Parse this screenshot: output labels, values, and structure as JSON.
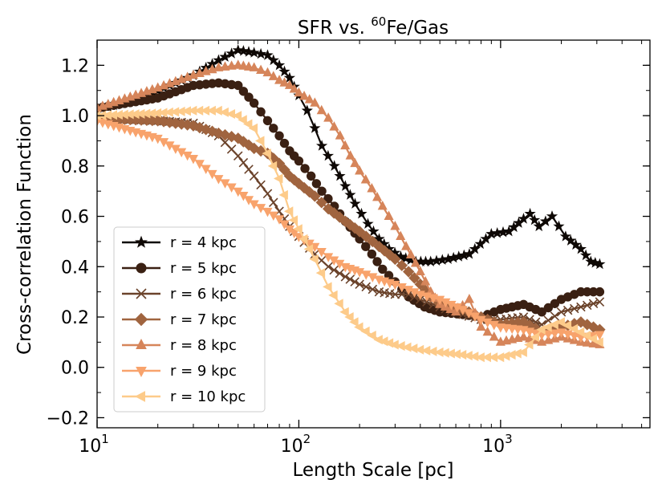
{
  "chart_data": {
    "type": "line",
    "title_main": "SFR vs. ",
    "title_sup": "60",
    "title_end": "Fe/Gas",
    "xlabel": "Length Scale [pc]",
    "ylabel": "Cross-correlation Function",
    "xscale": "log",
    "xlim": [
      10,
      5500
    ],
    "ylim": [
      -0.24,
      1.3
    ],
    "grid": false,
    "legend_position": "lower-left",
    "yticks": [
      -0.2,
      0.0,
      0.2,
      0.4,
      0.6,
      0.8,
      1.0,
      1.2
    ],
    "ytick_labels": [
      "−0.2",
      "0.0",
      "0.2",
      "0.4",
      "0.6",
      "0.8",
      "1.0",
      "1.2"
    ],
    "xticks": [
      {
        "value": 10,
        "base": "10",
        "exp": "1"
      },
      {
        "value": 100,
        "base": "10",
        "exp": "2"
      },
      {
        "value": 1000,
        "base": "10",
        "exp": "3"
      }
    ],
    "series": [
      {
        "name": "r = 4 kpc",
        "color": "#0e0805",
        "marker": "star",
        "points": [
          [
            10,
            1.02
          ],
          [
            20,
            1.1
          ],
          [
            30,
            1.16
          ],
          [
            40,
            1.22
          ],
          [
            50,
            1.26
          ],
          [
            60,
            1.25
          ],
          [
            70,
            1.24
          ],
          [
            80,
            1.2
          ],
          [
            90,
            1.15
          ],
          [
            100,
            1.08
          ],
          [
            110,
            1.02
          ],
          [
            120,
            0.95
          ],
          [
            130,
            0.88
          ],
          [
            150,
            0.8
          ],
          [
            170,
            0.72
          ],
          [
            190,
            0.65
          ],
          [
            220,
            0.57
          ],
          [
            250,
            0.51
          ],
          [
            280,
            0.47
          ],
          [
            320,
            0.44
          ],
          [
            380,
            0.42
          ],
          [
            450,
            0.42
          ],
          [
            550,
            0.43
          ],
          [
            700,
            0.45
          ],
          [
            900,
            0.53
          ],
          [
            1100,
            0.54
          ],
          [
            1300,
            0.59
          ],
          [
            1400,
            0.61
          ],
          [
            1550,
            0.56
          ],
          [
            1800,
            0.6
          ],
          [
            2100,
            0.52
          ],
          [
            2500,
            0.47
          ],
          [
            2800,
            0.42
          ],
          [
            3100,
            0.41
          ]
        ]
      },
      {
        "name": "r = 5 kpc",
        "color": "#3a2013",
        "marker": "circle",
        "points": [
          [
            10,
            1.03
          ],
          [
            20,
            1.07
          ],
          [
            30,
            1.12
          ],
          [
            40,
            1.13
          ],
          [
            50,
            1.12
          ],
          [
            60,
            1.05
          ],
          [
            70,
            0.98
          ],
          [
            80,
            0.92
          ],
          [
            90,
            0.86
          ],
          [
            100,
            0.82
          ],
          [
            115,
            0.76
          ],
          [
            130,
            0.7
          ],
          [
            150,
            0.64
          ],
          [
            170,
            0.58
          ],
          [
            200,
            0.51
          ],
          [
            230,
            0.45
          ],
          [
            260,
            0.39
          ],
          [
            300,
            0.34
          ],
          [
            350,
            0.28
          ],
          [
            420,
            0.24
          ],
          [
            500,
            0.22
          ],
          [
            650,
            0.21
          ],
          [
            800,
            0.2
          ],
          [
            1000,
            0.23
          ],
          [
            1300,
            0.25
          ],
          [
            1600,
            0.22
          ],
          [
            2000,
            0.27
          ],
          [
            2500,
            0.3
          ],
          [
            3100,
            0.3
          ]
        ]
      },
      {
        "name": "r = 6 kpc",
        "color": "#6b432b",
        "marker": "x",
        "points": [
          [
            10,
            0.99
          ],
          [
            20,
            0.98
          ],
          [
            30,
            0.97
          ],
          [
            40,
            0.92
          ],
          [
            50,
            0.84
          ],
          [
            60,
            0.76
          ],
          [
            70,
            0.69
          ],
          [
            80,
            0.62
          ],
          [
            90,
            0.56
          ],
          [
            100,
            0.52
          ],
          [
            120,
            0.45
          ],
          [
            140,
            0.4
          ],
          [
            170,
            0.36
          ],
          [
            200,
            0.33
          ],
          [
            250,
            0.3
          ],
          [
            300,
            0.29
          ],
          [
            350,
            0.29
          ],
          [
            400,
            0.27
          ],
          [
            500,
            0.24
          ],
          [
            650,
            0.21
          ],
          [
            800,
            0.19
          ],
          [
            1000,
            0.19
          ],
          [
            1300,
            0.2
          ],
          [
            1600,
            0.17
          ],
          [
            2000,
            0.22
          ],
          [
            2500,
            0.24
          ],
          [
            3100,
            0.26
          ]
        ]
      },
      {
        "name": "r = 7 kpc",
        "color": "#a0643f",
        "marker": "diamond",
        "points": [
          [
            10,
            0.99
          ],
          [
            20,
            0.98
          ],
          [
            30,
            0.96
          ],
          [
            40,
            0.93
          ],
          [
            50,
            0.91
          ],
          [
            60,
            0.87
          ],
          [
            70,
            0.85
          ],
          [
            80,
            0.81
          ],
          [
            90,
            0.76
          ],
          [
            100,
            0.73
          ],
          [
            120,
            0.68
          ],
          [
            140,
            0.63
          ],
          [
            170,
            0.58
          ],
          [
            200,
            0.54
          ],
          [
            250,
            0.48
          ],
          [
            300,
            0.43
          ],
          [
            350,
            0.38
          ],
          [
            400,
            0.33
          ],
          [
            450,
            0.28
          ],
          [
            550,
            0.24
          ],
          [
            650,
            0.23
          ],
          [
            800,
            0.2
          ],
          [
            1000,
            0.17
          ],
          [
            1300,
            0.18
          ],
          [
            1600,
            0.14
          ],
          [
            2000,
            0.16
          ],
          [
            2500,
            0.18
          ],
          [
            3100,
            0.15
          ]
        ]
      },
      {
        "name": "r = 8 kpc",
        "color": "#d6855a",
        "marker": "triangle-up",
        "points": [
          [
            10,
            1.03
          ],
          [
            20,
            1.11
          ],
          [
            30,
            1.16
          ],
          [
            40,
            1.19
          ],
          [
            50,
            1.2
          ],
          [
            60,
            1.19
          ],
          [
            70,
            1.17
          ],
          [
            80,
            1.14
          ],
          [
            90,
            1.12
          ],
          [
            100,
            1.09
          ],
          [
            120,
            1.05
          ],
          [
            140,
            0.99
          ],
          [
            160,
            0.92
          ],
          [
            180,
            0.84
          ],
          [
            200,
            0.78
          ],
          [
            230,
            0.71
          ],
          [
            260,
            0.64
          ],
          [
            300,
            0.56
          ],
          [
            340,
            0.48
          ],
          [
            400,
            0.38
          ],
          [
            450,
            0.3
          ],
          [
            500,
            0.25
          ],
          [
            600,
            0.22
          ],
          [
            700,
            0.27
          ],
          [
            800,
            0.16
          ],
          [
            1000,
            0.1
          ],
          [
            1300,
            0.12
          ],
          [
            1600,
            0.1
          ],
          [
            2000,
            0.12
          ],
          [
            2500,
            0.1
          ],
          [
            3100,
            0.09
          ]
        ]
      },
      {
        "name": "r = 9 kpc",
        "color": "#f8a36c",
        "marker": "triangle-down",
        "points": [
          [
            10,
            0.98
          ],
          [
            20,
            0.91
          ],
          [
            30,
            0.83
          ],
          [
            40,
            0.75
          ],
          [
            50,
            0.7
          ],
          [
            60,
            0.65
          ],
          [
            70,
            0.62
          ],
          [
            80,
            0.59
          ],
          [
            90,
            0.55
          ],
          [
            100,
            0.52
          ],
          [
            120,
            0.48
          ],
          [
            140,
            0.44
          ],
          [
            170,
            0.4
          ],
          [
            200,
            0.38
          ],
          [
            250,
            0.35
          ],
          [
            300,
            0.33
          ],
          [
            350,
            0.31
          ],
          [
            400,
            0.29
          ],
          [
            500,
            0.27
          ],
          [
            650,
            0.23
          ],
          [
            800,
            0.19
          ],
          [
            1000,
            0.16
          ],
          [
            1300,
            0.15
          ],
          [
            1600,
            0.13
          ],
          [
            2000,
            0.14
          ],
          [
            2500,
            0.12
          ],
          [
            3100,
            0.13
          ]
        ]
      },
      {
        "name": "r = 10 kpc",
        "color": "#fdcb8a",
        "marker": "triangle-left",
        "points": [
          [
            10,
            1.0
          ],
          [
            20,
            1.01
          ],
          [
            30,
            1.02
          ],
          [
            40,
            1.02
          ],
          [
            50,
            1.0
          ],
          [
            60,
            0.95
          ],
          [
            70,
            0.85
          ],
          [
            80,
            0.75
          ],
          [
            90,
            0.62
          ],
          [
            100,
            0.55
          ],
          [
            120,
            0.43
          ],
          [
            140,
            0.32
          ],
          [
            170,
            0.22
          ],
          [
            200,
            0.16
          ],
          [
            250,
            0.11
          ],
          [
            300,
            0.09
          ],
          [
            400,
            0.07
          ],
          [
            500,
            0.06
          ],
          [
            650,
            0.05
          ],
          [
            800,
            0.04
          ],
          [
            1000,
            0.04
          ],
          [
            1300,
            0.06
          ],
          [
            1600,
            0.15
          ],
          [
            2000,
            0.18
          ],
          [
            2500,
            0.14
          ],
          [
            3100,
            0.1
          ]
        ]
      }
    ]
  }
}
